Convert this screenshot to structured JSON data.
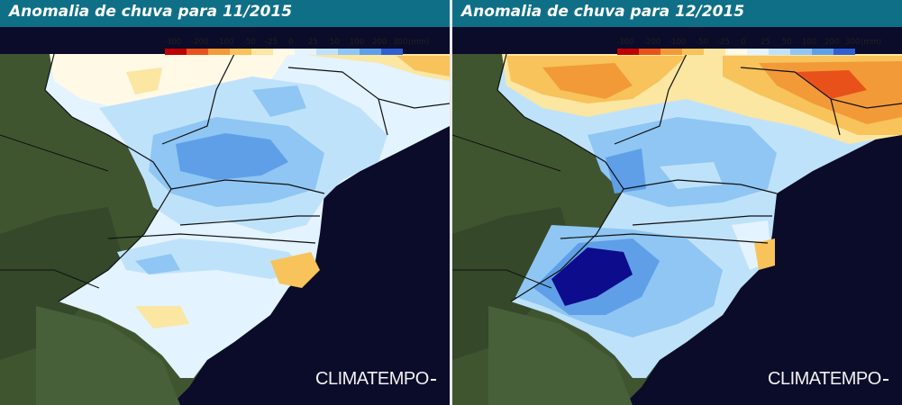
{
  "panels": [
    {
      "title": "Anomalia de chuva para 11/2015"
    },
    {
      "title": "Anomalia de chuva para 12/2015"
    }
  ],
  "legend": {
    "labels": [
      "-300",
      "-200",
      "-100",
      "-50",
      "-25",
      "0",
      "25",
      "50",
      "100",
      "200",
      "300",
      "(mm)"
    ],
    "colors": [
      "#c00000",
      "#e8521a",
      "#f29a38",
      "#f7c35a",
      "#fbe6a2",
      "#fff9e6",
      "#e3f3ff",
      "#bfe2fb",
      "#8fc6f3",
      "#5f9fe8",
      "#2f5fd2",
      "#0c0c8c"
    ]
  },
  "brand": "CLIMATEMPO",
  "colors": {
    "ocean": "#0b0b2a",
    "land": "#3f5530",
    "header": "#0f6f87"
  }
}
